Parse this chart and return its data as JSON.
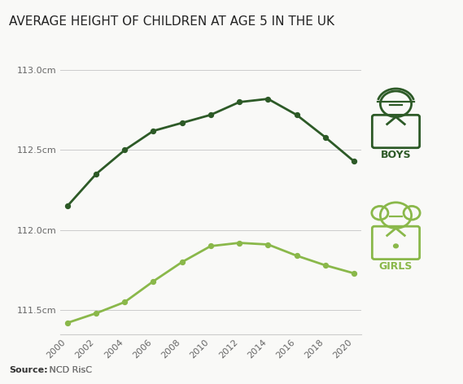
{
  "title": "AVERAGE HEIGHT OF CHILDREN AT AGE 5 IN THE UK",
  "source_bold": "Source:",
  "source_link": " NCD RisC",
  "years": [
    2000,
    2002,
    2004,
    2006,
    2008,
    2010,
    2012,
    2014,
    2016,
    2018,
    2020
  ],
  "boys": [
    112.15,
    112.35,
    112.5,
    112.62,
    112.67,
    112.72,
    112.8,
    112.82,
    112.72,
    112.58,
    112.43
  ],
  "girls": [
    111.42,
    111.48,
    111.55,
    111.68,
    111.8,
    111.9,
    111.92,
    111.91,
    111.84,
    111.78,
    111.73
  ],
  "boys_color": "#2d5a27",
  "girls_color": "#8ab84a",
  "background_color": "#f9f9f7",
  "grid_color": "#cccccc",
  "ylim": [
    111.35,
    113.15
  ],
  "yticks": [
    111.5,
    112.0,
    112.5,
    113.0
  ],
  "ytick_labels": [
    "111.5cm",
    "112.0cm",
    "112.5cm",
    "113.0cm"
  ],
  "xlim": [
    1999.5,
    2020.5
  ],
  "xticks": [
    2000,
    2002,
    2004,
    2006,
    2008,
    2010,
    2012,
    2014,
    2016,
    2018,
    2020
  ],
  "title_fontsize": 11,
  "tick_fontsize": 8
}
